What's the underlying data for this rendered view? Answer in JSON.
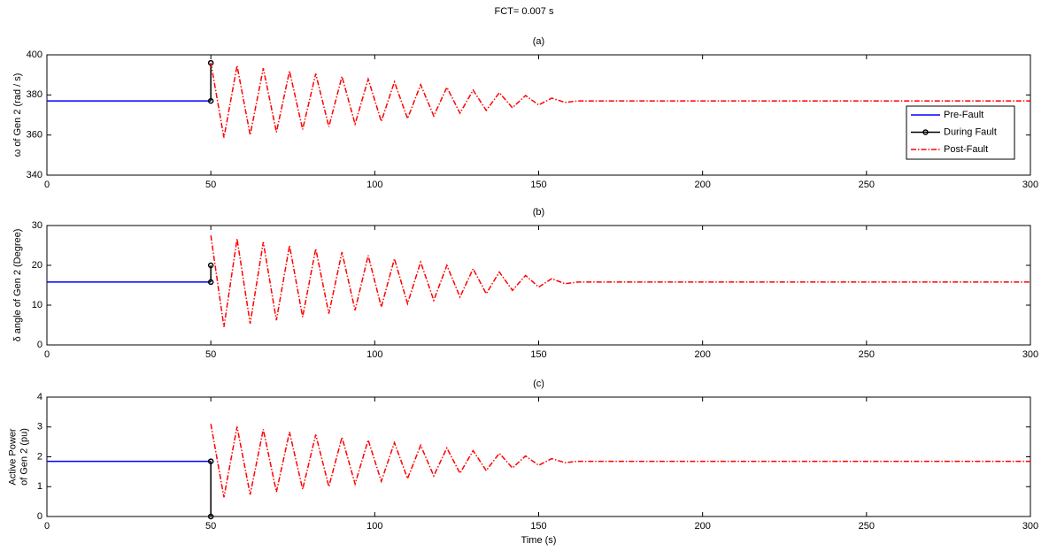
{
  "title": "FCT= 0.007 s",
  "chart_data": [
    {
      "type": "line",
      "title": "(a)",
      "ylabel": "ω of Gen 2 (rad / s)",
      "xlim": [
        0,
        300
      ],
      "xticks": [
        0,
        50,
        100,
        150,
        200,
        250,
        300
      ],
      "ylim": [
        340,
        400
      ],
      "yticks": [
        340,
        360,
        380,
        400
      ],
      "grid": false,
      "legend": "right",
      "series": [
        {
          "name": "Pre-Fault",
          "color": "#0000ff",
          "style": "solid",
          "x": [
            0,
            50
          ],
          "values": [
            377,
            377
          ]
        },
        {
          "name": "During Fault",
          "color": "#000000",
          "style": "solid",
          "marker": "circle",
          "x": [
            50,
            50
          ],
          "values": [
            377,
            396
          ]
        },
        {
          "name": "Post-Fault",
          "color": "#ff0000",
          "style": "dashdot",
          "x": [
            50,
            54,
            58,
            62,
            66,
            70,
            74,
            78,
            82,
            86,
            90,
            94,
            98,
            102,
            106,
            110,
            114,
            118,
            122,
            126,
            130,
            134,
            138,
            142,
            146,
            150,
            154,
            158,
            162,
            300
          ],
          "values": [
            396,
            358.7,
            394.6,
            360,
            393.3,
            361.4,
            391.9,
            362.8,
            390.6,
            364.1,
            389.2,
            365.5,
            387.9,
            366.8,
            386.5,
            368.2,
            385.1,
            369.5,
            383.8,
            370.9,
            382.4,
            372.3,
            381.1,
            373.6,
            379.7,
            375,
            378.4,
            376.3,
            377,
            377
          ]
        }
      ]
    },
    {
      "type": "line",
      "title": "(b)",
      "ylabel": "δ angle of Gen 2 (Degree)",
      "xlim": [
        0,
        300
      ],
      "xticks": [
        0,
        50,
        100,
        150,
        200,
        250,
        300
      ],
      "ylim": [
        0,
        30
      ],
      "yticks": [
        0,
        10,
        20,
        30
      ],
      "grid": false,
      "series": [
        {
          "name": "Pre-Fault",
          "color": "#0000ff",
          "style": "solid",
          "x": [
            0,
            50
          ],
          "values": [
            15.8,
            15.8
          ]
        },
        {
          "name": "During Fault",
          "color": "#000000",
          "style": "solid",
          "marker": "circle",
          "x": [
            50,
            50
          ],
          "values": [
            15.8,
            20
          ]
        },
        {
          "name": "Post-Fault",
          "color": "#ff0000",
          "style": "dashdot",
          "x": [
            50,
            54,
            58,
            62,
            66,
            70,
            74,
            78,
            82,
            86,
            90,
            94,
            98,
            102,
            106,
            110,
            114,
            118,
            122,
            126,
            130,
            134,
            138,
            142,
            146,
            150,
            154,
            158,
            162,
            300
          ],
          "values": [
            27.5,
            4.52,
            26.66,
            5.35,
            25.83,
            6.19,
            24.99,
            7.02,
            24.16,
            7.86,
            23.32,
            8.7,
            22.49,
            9.53,
            21.65,
            10.37,
            20.81,
            11.2,
            19.98,
            12.04,
            19.14,
            12.87,
            18.31,
            13.71,
            17.47,
            14.55,
            16.64,
            15.38,
            15.8,
            15.8
          ]
        }
      ]
    },
    {
      "type": "line",
      "title": "(c)",
      "ylabel": [
        "Active Power",
        "of Gen 2 (pu)"
      ],
      "xlabel": "Time (s)",
      "xlim": [
        0,
        300
      ],
      "xticks": [
        0,
        50,
        100,
        150,
        200,
        250,
        300
      ],
      "ylim": [
        0,
        4
      ],
      "yticks": [
        0,
        1,
        2,
        3,
        4
      ],
      "grid": false,
      "series": [
        {
          "name": "Pre-Fault",
          "color": "#0000ff",
          "style": "solid",
          "x": [
            0,
            50
          ],
          "values": [
            1.85,
            1.85
          ]
        },
        {
          "name": "During Fault",
          "color": "#000000",
          "style": "solid",
          "marker": "circle",
          "x": [
            50,
            50
          ],
          "values": [
            1.85,
            0
          ]
        },
        {
          "name": "Post-Fault",
          "color": "#ff0000",
          "style": "dashdot",
          "x": [
            50,
            54,
            58,
            62,
            66,
            70,
            74,
            78,
            82,
            86,
            90,
            94,
            98,
            102,
            106,
            110,
            114,
            118,
            122,
            126,
            130,
            134,
            138,
            142,
            146,
            150,
            154,
            158,
            162,
            300
          ],
          "values": [
            3.1,
            0.645,
            3.011,
            0.734,
            2.921,
            0.823,
            2.832,
            0.912,
            2.743,
            1.002,
            2.654,
            1.091,
            2.564,
            1.18,
            2.475,
            1.27,
            2.386,
            1.359,
            2.296,
            1.448,
            2.207,
            1.537,
            2.118,
            1.627,
            2.029,
            1.716,
            1.939,
            1.805,
            1.85,
            1.85
          ]
        }
      ]
    }
  ]
}
